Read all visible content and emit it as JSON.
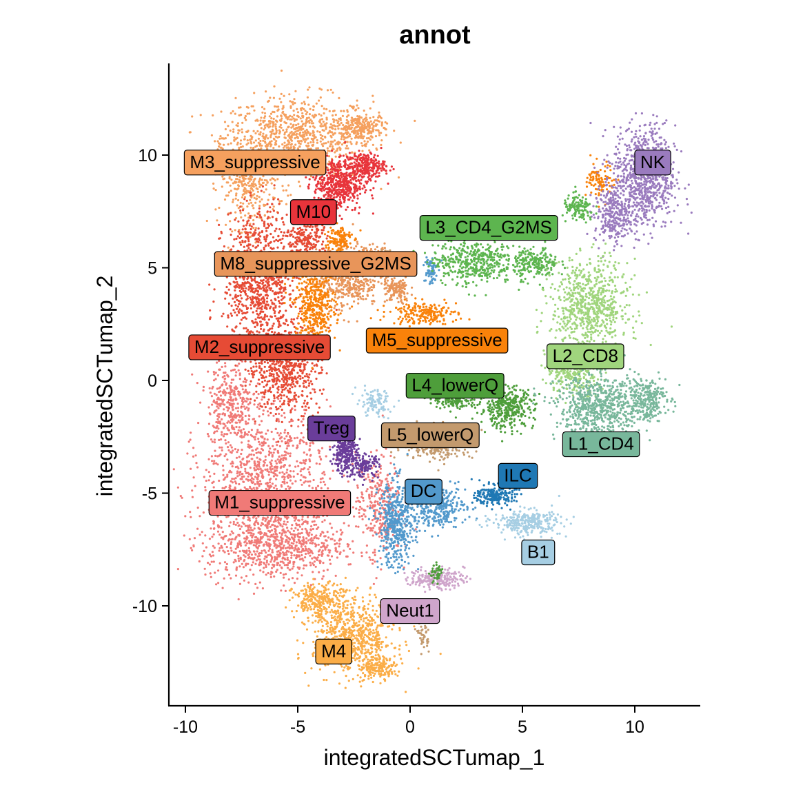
{
  "chart_data": {
    "type": "scatter",
    "title": "annot",
    "xlabel": "integratedSCTumap_1",
    "ylabel": "integratedSCTumap_2",
    "xlim": [
      -10.6,
      12.9
    ],
    "ylim": [
      -14.3,
      14.0
    ],
    "x_ticks": [
      -10,
      -5,
      0,
      5,
      10
    ],
    "y_ticks": [
      -10,
      -5,
      0,
      5,
      10
    ],
    "x_tick_labels": [
      "-10",
      "-5",
      "0",
      "5",
      "10"
    ],
    "y_tick_labels": [
      "-10",
      "-5",
      "0",
      "5",
      "10"
    ],
    "grid": false,
    "legend": "none",
    "clusters": [
      {
        "name": "M3_suppressive",
        "color": "#F5A05E",
        "label_x": -6.9,
        "label_y": 9.7,
        "blobs": [
          [
            -5.0,
            10.8,
            3.3,
            1.8,
            1.0
          ],
          [
            -7.2,
            9.0,
            1.3,
            2.2,
            0.5
          ],
          [
            -2.2,
            11.2,
            1.0,
            0.6,
            0.25
          ]
        ]
      },
      {
        "name": "M10",
        "color": "#E8343B",
        "label_x": -4.3,
        "label_y": 7.5,
        "blobs": [
          [
            -3.2,
            8.7,
            1.1,
            1.2,
            0.6
          ],
          [
            -2.0,
            9.5,
            0.9,
            0.6,
            0.3
          ]
        ]
      },
      {
        "name": "M8_suppressive_G2MS",
        "color": "#E8955A",
        "label_x": -4.2,
        "label_y": 5.2,
        "blobs": [
          [
            -2.8,
            4.6,
            1.4,
            1.3,
            0.6
          ],
          [
            -1.5,
            5.4,
            0.9,
            0.5,
            0.2
          ],
          [
            -0.6,
            4.0,
            0.6,
            0.6,
            0.15
          ]
        ]
      },
      {
        "name": "M2_suppressive",
        "color": "#E64B35",
        "label_x": -6.7,
        "label_y": 1.5,
        "blobs": [
          [
            -6.7,
            4.5,
            1.6,
            3.0,
            1.1
          ],
          [
            -5.6,
            0.6,
            1.6,
            2.0,
            0.8
          ],
          [
            -4.6,
            6.2,
            0.9,
            1.2,
            0.3
          ]
        ]
      },
      {
        "name": "M5_suppressive",
        "color": "#F9820A",
        "label_x": 1.2,
        "label_y": 1.8,
        "blobs": [
          [
            -4.2,
            3.2,
            0.9,
            1.8,
            0.55
          ],
          [
            0.6,
            3.0,
            1.5,
            0.5,
            0.25
          ],
          [
            -3.2,
            6.3,
            0.6,
            0.6,
            0.15
          ],
          [
            8.5,
            8.8,
            0.6,
            0.8,
            0.12
          ]
        ]
      },
      {
        "name": "M1_suppressive",
        "color": "#F07A77",
        "label_x": -5.8,
        "label_y": -5.4,
        "blobs": [
          [
            -6.4,
            -4.2,
            2.8,
            2.8,
            1.1
          ],
          [
            -6.0,
            -7.3,
            3.1,
            1.6,
            1.0
          ],
          [
            -1.4,
            -5.5,
            1.0,
            2.2,
            0.35
          ],
          [
            -8.0,
            -1.0,
            1.0,
            2.0,
            0.4
          ]
        ]
      },
      {
        "name": "M4",
        "color": "#FBAD47",
        "label_x": -3.4,
        "label_y": -12.0,
        "blobs": [
          [
            -2.5,
            -11.4,
            1.8,
            1.6,
            0.8
          ],
          [
            -4.0,
            -9.8,
            1.2,
            0.8,
            0.35
          ],
          [
            -1.4,
            -12.7,
            0.8,
            0.5,
            0.2
          ]
        ]
      },
      {
        "name": "Treg",
        "color": "#6A3D9A",
        "label_x": -3.5,
        "label_y": -2.1,
        "blobs": [
          [
            -2.9,
            -3.2,
            0.55,
            0.9,
            0.35
          ],
          [
            -2.0,
            -3.8,
            0.6,
            0.5,
            0.15
          ]
        ]
      },
      {
        "name": "L5_lowerQ",
        "color": "#C39A6E",
        "label_x": 0.9,
        "label_y": -2.4,
        "blobs": [
          [
            1.2,
            -2.8,
            1.6,
            0.7,
            0.35
          ],
          [
            0.6,
            -11.3,
            0.25,
            0.6,
            0.05
          ],
          [
            -1.0,
            5.6,
            0.5,
            0.2,
            0.05
          ]
        ]
      },
      {
        "name": "DC",
        "color": "#5299CC",
        "label_x": 0.6,
        "label_y": -4.9,
        "blobs": [
          [
            -0.6,
            -6.4,
            0.8,
            1.9,
            0.55
          ],
          [
            1.2,
            -5.6,
            1.3,
            0.9,
            0.4
          ],
          [
            0.9,
            4.9,
            0.3,
            0.7,
            0.08
          ]
        ]
      },
      {
        "name": "ILC",
        "color": "#1F78B4",
        "label_x": 4.8,
        "label_y": -4.2,
        "blobs": [
          [
            3.8,
            -5.1,
            0.9,
            0.45,
            0.25
          ]
        ]
      },
      {
        "name": "B1",
        "color": "#A6CEE3",
        "label_x": 5.7,
        "label_y": -7.6,
        "blobs": [
          [
            5.2,
            -6.3,
            1.5,
            0.55,
            0.35
          ],
          [
            -1.6,
            -1.0,
            0.8,
            0.6,
            0.12
          ]
        ]
      },
      {
        "name": "Neut1",
        "color": "#CFA5CB",
        "label_x": 0.0,
        "label_y": -10.2,
        "blobs": [
          [
            1.2,
            -8.8,
            1.2,
            0.45,
            0.25
          ]
        ]
      },
      {
        "name": "NK",
        "color": "#9A7BBE",
        "label_x": 10.8,
        "label_y": 9.7,
        "blobs": [
          [
            10.4,
            9.0,
            1.4,
            2.3,
            1.0
          ],
          [
            9.0,
            7.3,
            0.8,
            1.2,
            0.3
          ]
        ]
      },
      {
        "name": "L3_CD4_G2MS",
        "color": "#5DB54F",
        "label_x": 3.5,
        "label_y": 6.8,
        "blobs": [
          [
            2.8,
            5.3,
            1.8,
            1.0,
            0.55
          ],
          [
            5.6,
            5.2,
            1.0,
            0.7,
            0.25
          ],
          [
            7.5,
            7.6,
            0.7,
            0.6,
            0.15
          ]
        ]
      },
      {
        "name": "L2_CD8",
        "color": "#A0D57D",
        "label_x": 7.8,
        "label_y": 1.1,
        "blobs": [
          [
            8.0,
            3.3,
            1.7,
            2.0,
            0.9
          ],
          [
            7.3,
            0.5,
            1.2,
            1.1,
            0.4
          ]
        ]
      },
      {
        "name": "L4_lowerQ",
        "color": "#4E9E3B",
        "label_x": 2.0,
        "label_y": -0.2,
        "blobs": [
          [
            4.3,
            -1.2,
            1.2,
            0.9,
            0.45
          ],
          [
            2.0,
            -0.8,
            1.0,
            0.5,
            0.2
          ],
          [
            1.2,
            -8.6,
            0.3,
            0.4,
            0.05
          ]
        ]
      },
      {
        "name": "L1_CD4",
        "color": "#78B79B",
        "label_x": 8.5,
        "label_y": -2.8,
        "blobs": [
          [
            8.4,
            -1.2,
            1.9,
            1.4,
            0.85
          ],
          [
            10.5,
            -0.8,
            0.9,
            1.0,
            0.3
          ]
        ]
      }
    ]
  }
}
